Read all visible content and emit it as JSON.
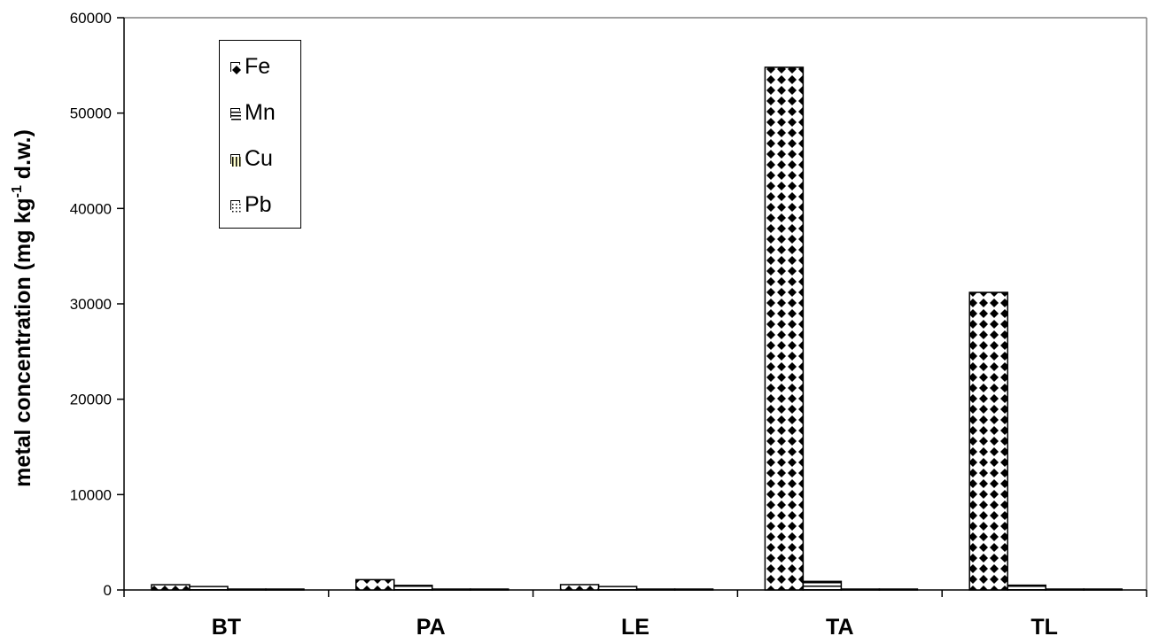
{
  "chart_data": {
    "type": "bar",
    "categories": [
      "BT",
      "PA",
      "LE",
      "TA",
      "TL"
    ],
    "series": [
      {
        "name": "Fe",
        "values": [
          550,
          1080,
          560,
          54800,
          31200
        ],
        "pattern": "diamond",
        "color": "#000000"
      },
      {
        "name": "Mn",
        "values": [
          360,
          480,
          360,
          900,
          500
        ],
        "pattern": "hlines",
        "color": "#000000"
      },
      {
        "name": "Cu",
        "values": [
          30,
          40,
          30,
          60,
          40
        ],
        "pattern": "vlines",
        "color": "#ffffcc"
      },
      {
        "name": "Pb",
        "values": [
          20,
          30,
          20,
          50,
          30
        ],
        "pattern": "dots",
        "color": "#000000"
      }
    ],
    "title": "",
    "xlabel": "",
    "ylabel": "metal concentration (mg kg",
    "ylabel_sup": "-1",
    "ylabel_suffix": " d.w.)",
    "ylim": [
      0,
      60000
    ],
    "yticks": [
      "0",
      "10000",
      "20000",
      "30000",
      "40000",
      "50000",
      "60000"
    ],
    "grid": false,
    "legend_position": "top-left"
  }
}
